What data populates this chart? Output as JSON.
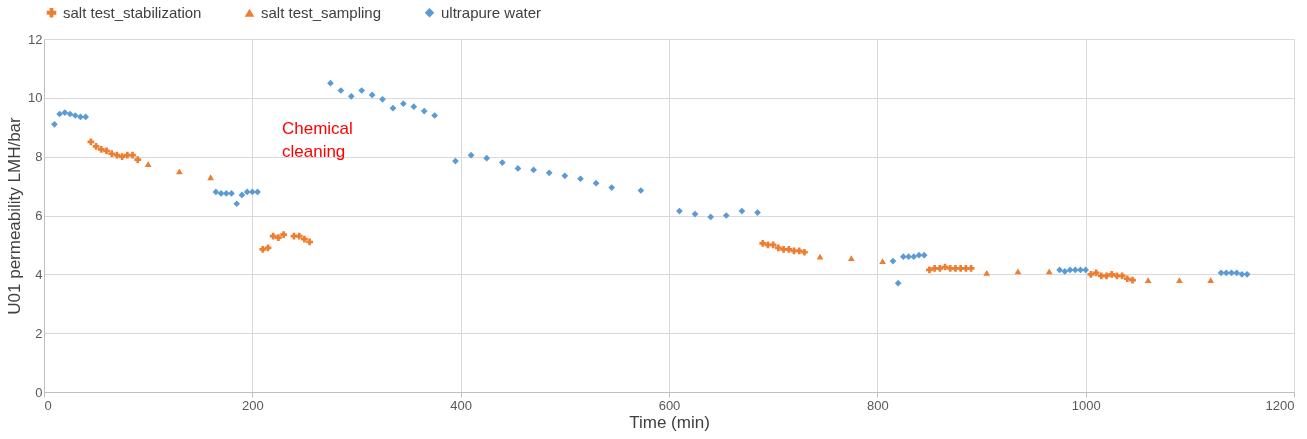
{
  "chart_data": {
    "type": "scatter",
    "xlabel": "Time (min)",
    "ylabel": "U01 permeability LMH/bar",
    "xlim": [
      0,
      1200
    ],
    "xticks": [
      0,
      200,
      400,
      600,
      800,
      1000,
      1200
    ],
    "ylim": [
      0,
      12
    ],
    "yticks": [
      0,
      2,
      4,
      6,
      8,
      10,
      12
    ],
    "grid": true,
    "legend": "top",
    "annotations": [
      "Chemical\ncleaning"
    ],
    "series": [
      {
        "name": "salt test_stabilization",
        "color": "#ed7d31",
        "marker": "cross",
        "x": [
          45,
          50,
          55,
          60,
          65,
          70,
          75,
          80,
          85,
          90,
          210,
          215,
          220,
          225,
          230,
          240,
          245,
          250,
          255,
          690,
          695,
          700,
          705,
          710,
          715,
          720,
          725,
          730,
          850,
          855,
          860,
          865,
          870,
          875,
          880,
          885,
          890,
          1005,
          1010,
          1015,
          1020,
          1025,
          1030,
          1035,
          1040,
          1045
        ],
        "values": [
          8.5,
          8.35,
          8.25,
          8.2,
          8.1,
          8.05,
          8.0,
          8.05,
          8.05,
          7.9,
          4.85,
          4.9,
          5.3,
          5.25,
          5.35,
          5.3,
          5.3,
          5.2,
          5.1,
          5.05,
          5.0,
          5.0,
          4.9,
          4.85,
          4.85,
          4.8,
          4.8,
          4.75,
          4.15,
          4.2,
          4.2,
          4.25,
          4.2,
          4.2,
          4.2,
          4.2,
          4.2,
          4.0,
          4.05,
          3.95,
          3.95,
          4.0,
          3.95,
          3.95,
          3.85,
          3.8
        ]
      },
      {
        "name": "salt test_sampling",
        "color": "#ed7d31",
        "marker": "triangle",
        "x": [
          100,
          130,
          160,
          745,
          775,
          805,
          905,
          935,
          965,
          1060,
          1090,
          1120
        ],
        "values": [
          7.75,
          7.5,
          7.3,
          4.6,
          4.55,
          4.45,
          4.05,
          4.1,
          4.1,
          3.8,
          3.8,
          3.8
        ]
      },
      {
        "name": "ultrapure water",
        "color": "#5b9bd5",
        "marker": "diamond",
        "x": [
          10,
          15,
          20,
          25,
          30,
          35,
          40,
          165,
          170,
          175,
          180,
          185,
          190,
          195,
          200,
          205,
          275,
          285,
          295,
          305,
          315,
          325,
          335,
          345,
          355,
          365,
          375,
          395,
          410,
          425,
          440,
          455,
          470,
          485,
          500,
          515,
          530,
          545,
          573,
          610,
          625,
          640,
          655,
          670,
          685,
          815,
          820,
          825,
          830,
          835,
          840,
          845,
          975,
          980,
          985,
          990,
          995,
          1000,
          1130,
          1135,
          1140,
          1145,
          1150,
          1155
        ],
        "values": [
          9.1,
          9.45,
          9.5,
          9.45,
          9.4,
          9.35,
          9.35,
          6.8,
          6.75,
          6.75,
          6.75,
          6.4,
          6.7,
          6.8,
          6.8,
          6.8,
          10.5,
          10.25,
          10.05,
          10.25,
          10.1,
          9.95,
          9.65,
          9.8,
          9.7,
          9.55,
          9.4,
          7.85,
          8.05,
          7.95,
          7.8,
          7.6,
          7.55,
          7.45,
          7.35,
          7.25,
          7.1,
          6.95,
          6.85,
          6.15,
          6.05,
          5.95,
          6.0,
          6.15,
          6.1,
          4.45,
          3.7,
          4.6,
          4.6,
          4.6,
          4.65,
          4.65,
          4.15,
          4.1,
          4.15,
          4.15,
          4.15,
          4.15,
          4.05,
          4.05,
          4.05,
          4.05,
          4.0,
          4.0
        ]
      }
    ]
  }
}
